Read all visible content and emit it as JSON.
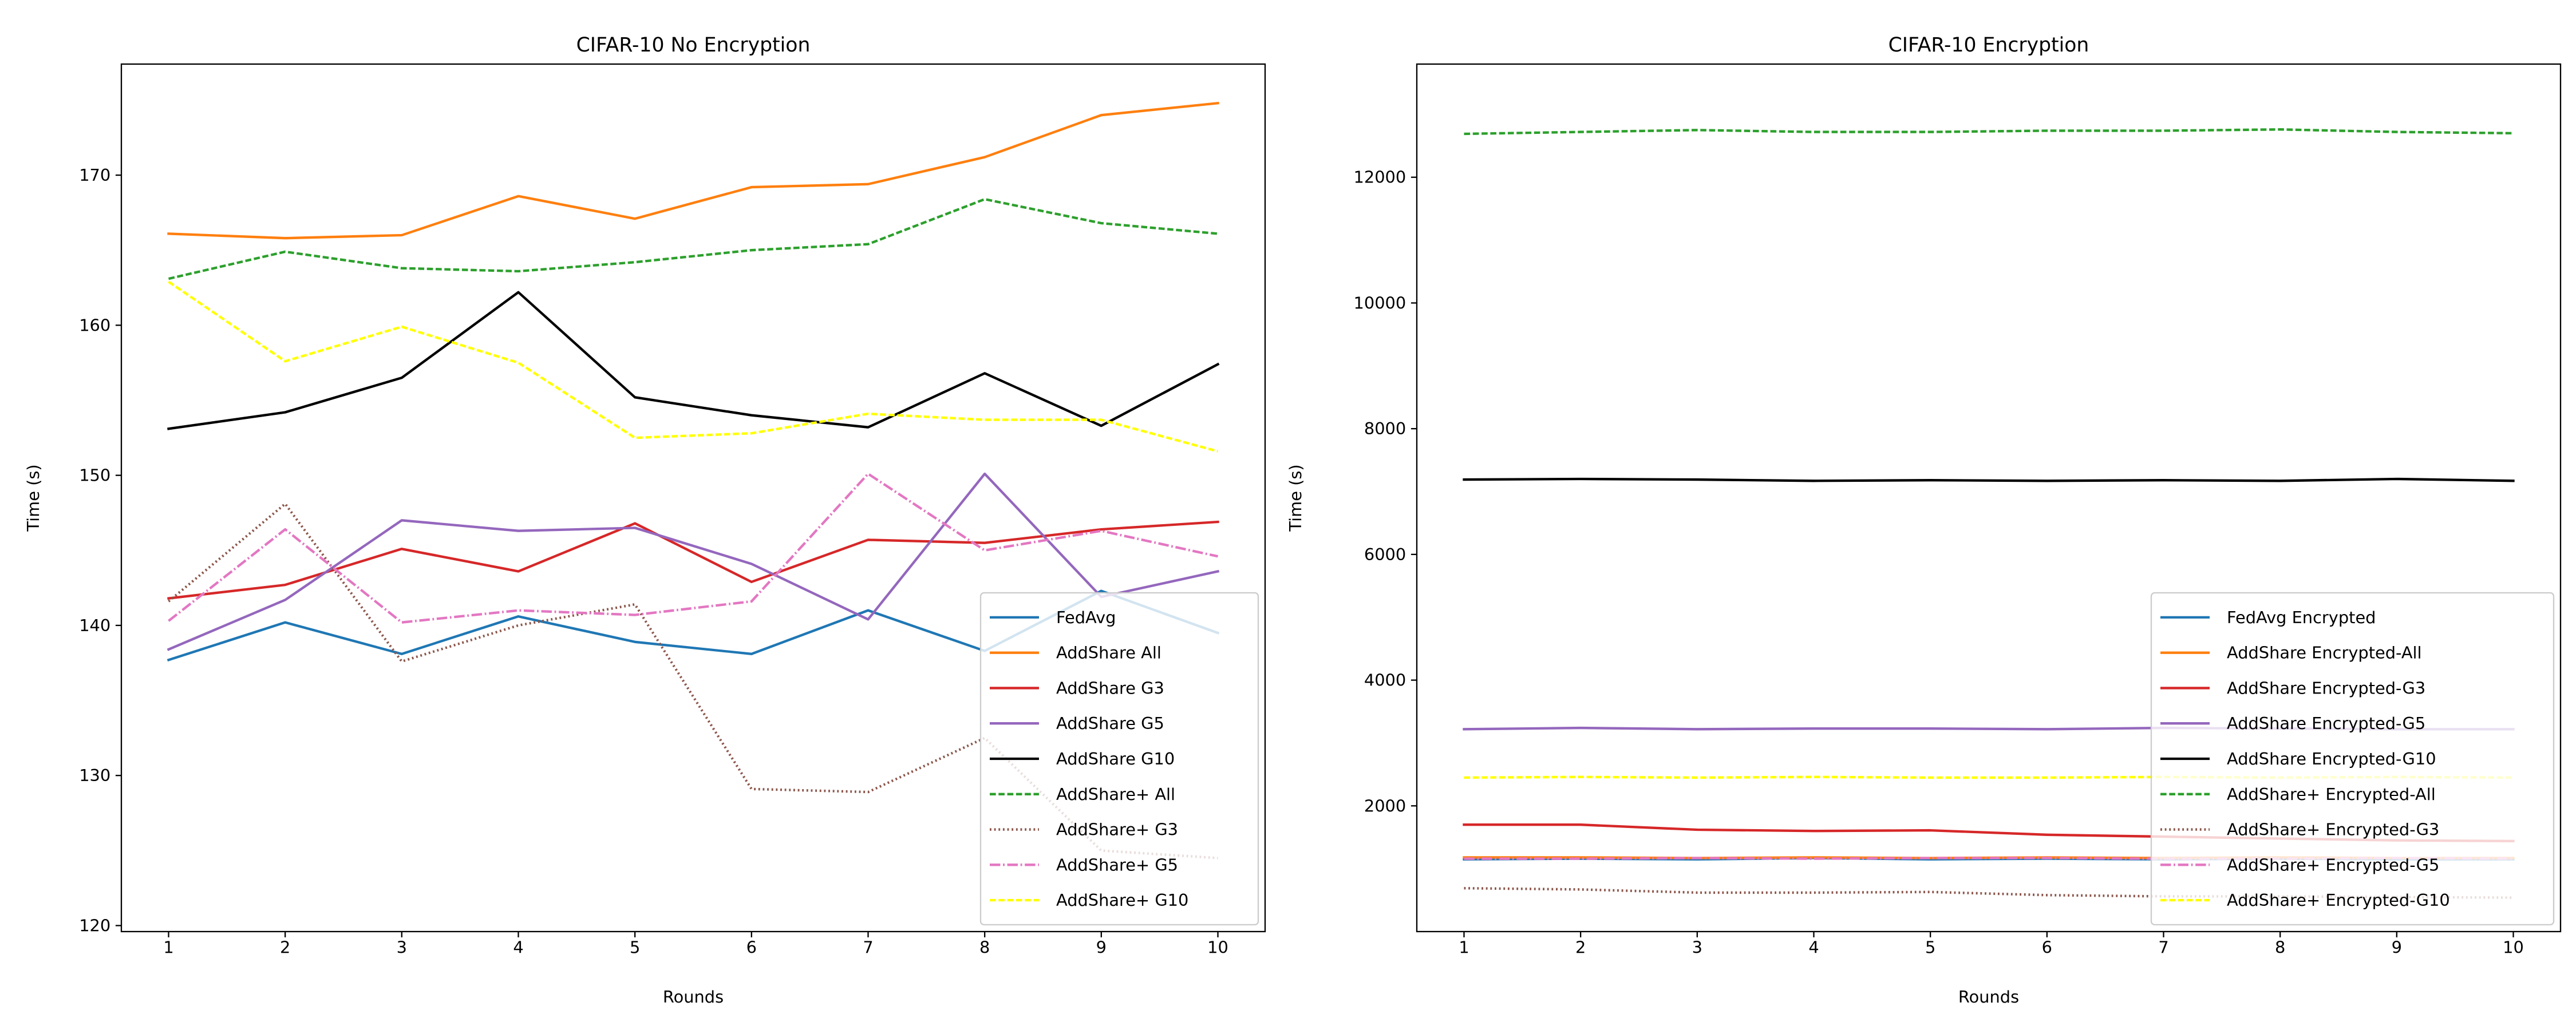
{
  "chart_data": [
    {
      "type": "line",
      "title": "CIFAR-10 No Encryption",
      "xlabel": "Rounds",
      "ylabel": "Time (s)",
      "x": [
        1,
        2,
        3,
        4,
        5,
        6,
        7,
        8,
        9,
        10
      ],
      "xticks": [
        "1",
        "2",
        "3",
        "4",
        "5",
        "6",
        "7",
        "8",
        "9",
        "10"
      ],
      "yticks": [
        120,
        130,
        140,
        150,
        160,
        170
      ],
      "ylim": [
        119.6,
        177.4
      ],
      "legend_position": "lower right",
      "series": [
        {
          "name": "FedAvg",
          "color": "#1f77b4",
          "style": "solid",
          "values": [
            137.7,
            140.2,
            138.1,
            140.6,
            138.9,
            138.1,
            141.0,
            138.3,
            142.3,
            139.5
          ]
        },
        {
          "name": "AddShare All",
          "color": "#ff7f0e",
          "style": "solid",
          "values": [
            166.1,
            165.8,
            166.0,
            168.6,
            167.1,
            169.2,
            169.4,
            171.2,
            174.0,
            174.8
          ]
        },
        {
          "name": "AddShare G3",
          "color": "#d62728",
          "style": "solid",
          "values": [
            141.8,
            142.7,
            145.1,
            143.6,
            146.8,
            142.9,
            145.7,
            145.5,
            146.4,
            146.9
          ]
        },
        {
          "name": "AddShare G5",
          "color": "#9467bd",
          "style": "solid",
          "values": [
            138.4,
            141.7,
            147.0,
            146.3,
            146.5,
            144.1,
            140.4,
            150.1,
            141.9,
            143.6
          ]
        },
        {
          "name": "AddShare G10",
          "color": "#000000",
          "style": "solid",
          "values": [
            153.1,
            154.2,
            156.5,
            162.2,
            155.2,
            154.0,
            153.2,
            156.8,
            153.3,
            157.4
          ]
        },
        {
          "name": "AddShare+ All",
          "color": "#2ca02c",
          "style": "dashed",
          "values": [
            163.1,
            164.9,
            163.8,
            163.6,
            164.2,
            165.0,
            165.4,
            168.4,
            166.8,
            166.1
          ]
        },
        {
          "name": "AddShare+ G3",
          "color": "#8c564b",
          "style": "dotted",
          "values": [
            141.6,
            148.1,
            137.6,
            140.0,
            141.4,
            129.1,
            128.9,
            132.5,
            125.0,
            124.5
          ]
        },
        {
          "name": "AddShare+ G5",
          "color": "#e377c2",
          "style": "dashdot",
          "values": [
            140.3,
            146.4,
            140.2,
            141.0,
            140.7,
            141.6,
            150.1,
            145.0,
            146.3,
            144.6
          ]
        },
        {
          "name": "AddShare+ G10",
          "color": "#ffff00",
          "style": "dashed",
          "values": [
            162.9,
            157.6,
            159.9,
            157.5,
            152.5,
            152.8,
            154.1,
            153.7,
            153.7,
            151.6
          ]
        }
      ]
    },
    {
      "type": "line",
      "title": "CIFAR-10 Encryption",
      "xlabel": "Rounds",
      "ylabel": "Time (s)",
      "x": [
        1,
        2,
        3,
        4,
        5,
        6,
        7,
        8,
        9,
        10
      ],
      "xticks": [
        "1",
        "2",
        "3",
        "4",
        "5",
        "6",
        "7",
        "8",
        "9",
        "10"
      ],
      "yticks": [
        2000,
        4000,
        6000,
        8000,
        10000,
        12000
      ],
      "ylim": [
        0,
        13800
      ],
      "legend_position": "lower right",
      "series": [
        {
          "name": "FedAvg Encrypted",
          "color": "#1f77b4",
          "style": "solid",
          "values": [
            1150,
            1160,
            1150,
            1170,
            1150,
            1160,
            1150,
            1160,
            1150,
            1150
          ]
        },
        {
          "name": "AddShare Encrypted-All",
          "color": "#ff7f0e",
          "style": "solid",
          "values": [
            1180,
            1180,
            1170,
            1180,
            1170,
            1180,
            1170,
            1180,
            1170,
            1170
          ]
        },
        {
          "name": "AddShare Encrypted-G3",
          "color": "#d62728",
          "style": "solid",
          "values": [
            1700,
            1700,
            1620,
            1600,
            1610,
            1540,
            1510,
            1480,
            1450,
            1440
          ]
        },
        {
          "name": "AddShare Encrypted-G5",
          "color": "#9467bd",
          "style": "solid",
          "values": [
            3220,
            3240,
            3220,
            3230,
            3230,
            3220,
            3240,
            3230,
            3220,
            3220
          ]
        },
        {
          "name": "AddShare Encrypted-G10",
          "color": "#000000",
          "style": "solid",
          "values": [
            7190,
            7200,
            7190,
            7170,
            7180,
            7170,
            7180,
            7170,
            7200,
            7170
          ]
        },
        {
          "name": "AddShare+ Encrypted-All",
          "color": "#2ca02c",
          "style": "dashed",
          "values": [
            12690,
            12720,
            12750,
            12720,
            12720,
            12740,
            12740,
            12760,
            12720,
            12700
          ]
        },
        {
          "name": "AddShare+ Encrypted-G3",
          "color": "#8c564b",
          "style": "dotted",
          "values": [
            690,
            670,
            620,
            620,
            630,
            580,
            560,
            560,
            550,
            540
          ]
        },
        {
          "name": "AddShare+ Encrypted-G5",
          "color": "#e377c2",
          "style": "dashdot",
          "values": [
            1160,
            1160,
            1170,
            1160,
            1170,
            1170,
            1160,
            1160,
            1170,
            1160
          ]
        },
        {
          "name": "AddShare+ Encrypted-G10",
          "color": "#ffff00",
          "style": "dashed",
          "values": [
            2450,
            2460,
            2450,
            2460,
            2450,
            2450,
            2460,
            2450,
            2460,
            2450
          ]
        }
      ]
    }
  ]
}
